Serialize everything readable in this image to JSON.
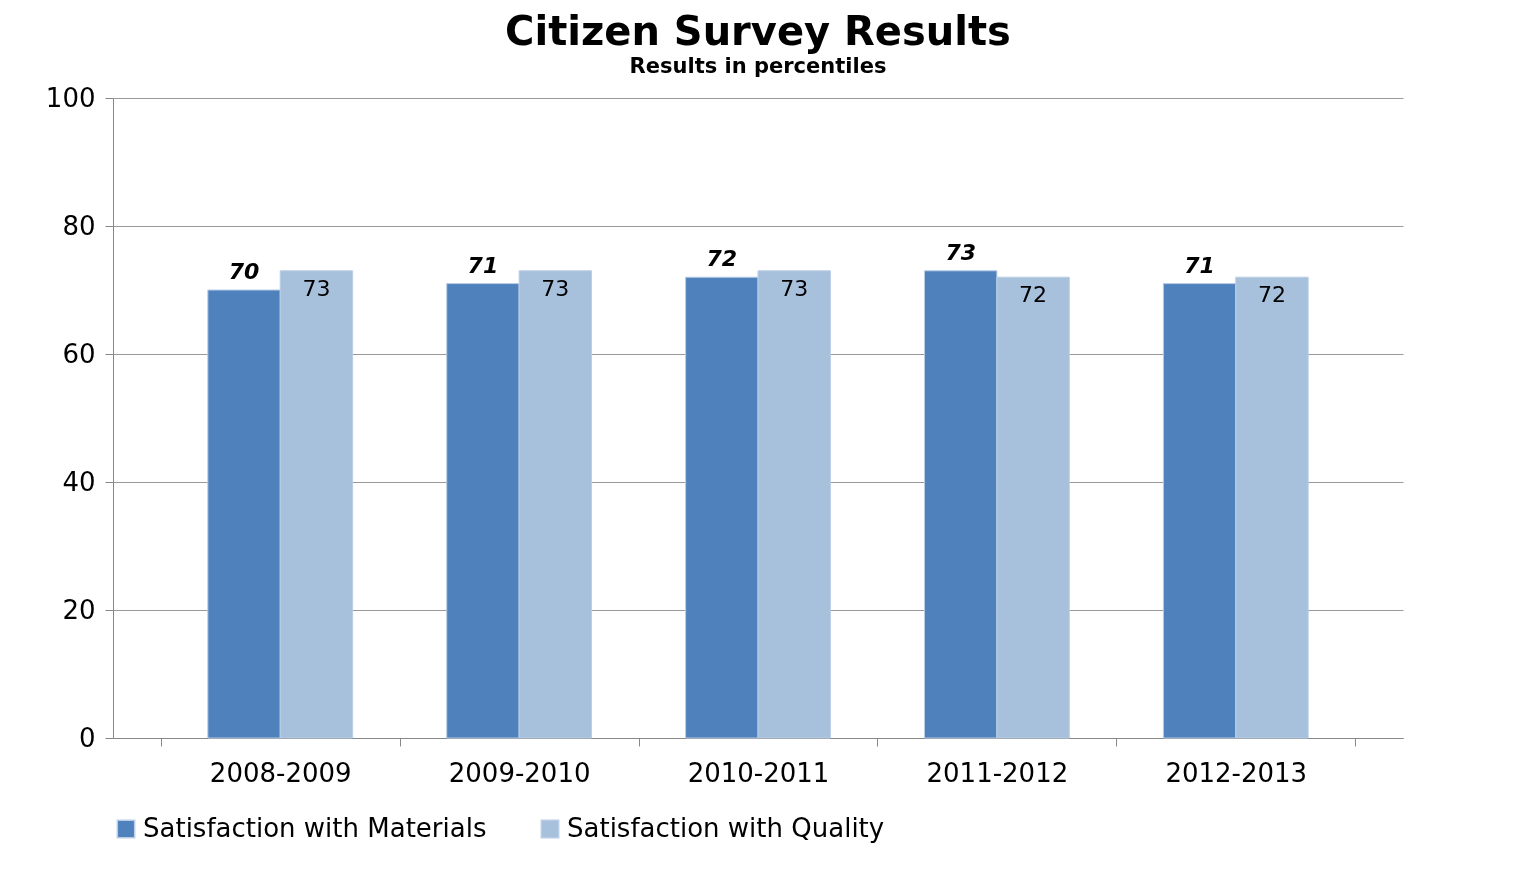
{
  "chart_data": {
    "type": "bar",
    "title": "Citizen Survey Results",
    "subtitle": "Results in percentiles",
    "categories": [
      "2008-2009",
      "2009-2010",
      "2010-2011",
      "2011-2012",
      "2012-2013"
    ],
    "series": [
      {
        "name": "Satisfaction with Materials",
        "color": "#4f81bd",
        "values": [
          70,
          71,
          72,
          73,
          71
        ]
      },
      {
        "name": "Satisfaction with Quality",
        "color": "#a7c0dc",
        "values": [
          73,
          73,
          73,
          72,
          72
        ]
      }
    ],
    "ylim": [
      0,
      100
    ],
    "yticks": [
      0,
      20,
      40,
      60,
      80,
      100
    ],
    "grid": "y",
    "legend": "bottom",
    "data_labels": true
  }
}
